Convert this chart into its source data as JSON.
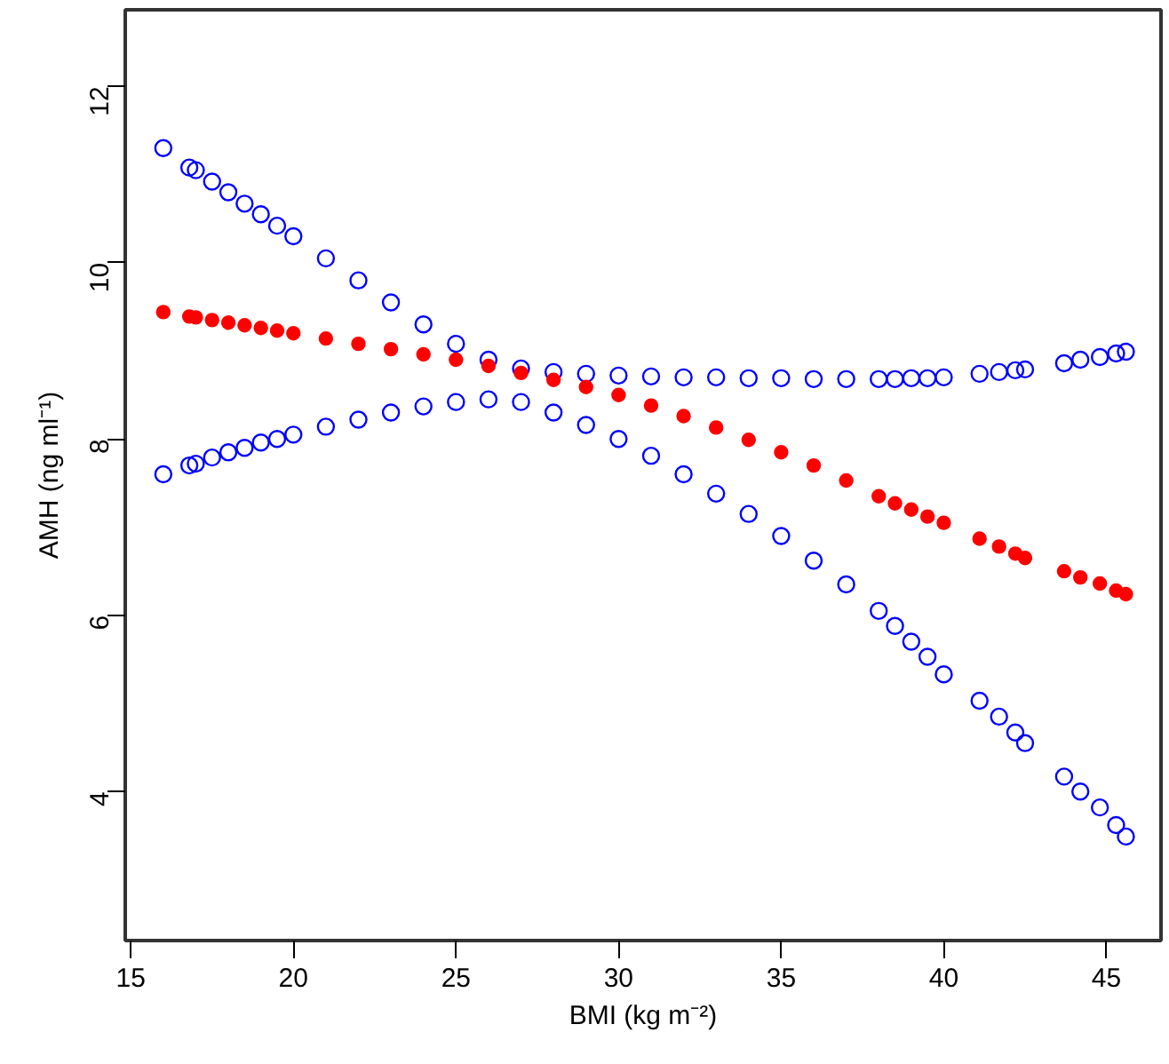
{
  "chart_data": {
    "type": "scatter",
    "xlabel": "BMI (kg m⁻²)",
    "ylabel": "AMH (ng ml⁻¹)",
    "x": [
      16,
      16.8,
      17,
      17.5,
      18,
      18.5,
      19,
      19.5,
      20,
      21,
      22,
      23,
      24,
      25,
      26,
      27,
      28,
      29,
      30,
      31,
      32,
      33,
      34,
      35,
      36,
      37,
      38,
      38.5,
      39,
      39.5,
      40,
      41.1,
      41.7,
      42.2,
      42.5,
      43.7,
      44.2,
      44.8,
      45.3,
      45.6
    ],
    "series": [
      {
        "color": "#0000ff",
        "marker": "circle_open",
        "values": [
          11.3,
          11.08,
          11.05,
          10.92,
          10.8,
          10.67,
          10.55,
          10.42,
          10.3,
          10.05,
          9.8,
          9.55,
          9.3,
          9.08,
          8.9,
          8.8,
          8.76,
          8.74,
          8.72,
          8.71,
          8.7,
          8.7,
          8.69,
          8.69,
          8.68,
          8.68,
          8.68,
          8.68,
          8.69,
          8.69,
          8.7,
          8.74,
          8.76,
          8.78,
          8.79,
          8.86,
          8.9,
          8.93,
          8.97,
          8.99
        ]
      },
      {
        "color": "#ff0000",
        "marker": "circle",
        "values": [
          9.44,
          9.39,
          9.38,
          9.35,
          9.32,
          9.29,
          9.26,
          9.23,
          9.2,
          9.14,
          9.08,
          9.02,
          8.96,
          8.9,
          8.83,
          8.75,
          8.67,
          8.59,
          8.5,
          8.38,
          8.26,
          8.13,
          7.99,
          7.85,
          7.7,
          7.53,
          7.35,
          7.27,
          7.2,
          7.12,
          7.05,
          6.87,
          6.78,
          6.7,
          6.65,
          6.5,
          6.43,
          6.36,
          6.28,
          6.24
        ]
      },
      {
        "color": "#0000ff",
        "marker": "circle_open",
        "values": [
          7.6,
          7.7,
          7.72,
          7.79,
          7.85,
          7.9,
          7.96,
          8.0,
          8.05,
          8.14,
          8.22,
          8.3,
          8.37,
          8.42,
          8.45,
          8.42,
          8.3,
          8.16,
          8.0,
          7.81,
          7.6,
          7.38,
          7.15,
          6.9,
          6.62,
          6.35,
          6.05,
          5.88,
          5.7,
          5.53,
          5.33,
          5.03,
          4.85,
          4.67,
          4.55,
          4.17,
          4.0,
          3.82,
          3.62,
          3.49
        ]
      }
    ],
    "xlim": [
      14.83,
      46.68
    ],
    "ylim": [
      2.31,
      12.87
    ],
    "xticks": [
      15,
      20,
      25,
      30,
      35,
      40,
      45
    ],
    "yticks": [
      4,
      6,
      8,
      10,
      12
    ],
    "grid": false
  }
}
